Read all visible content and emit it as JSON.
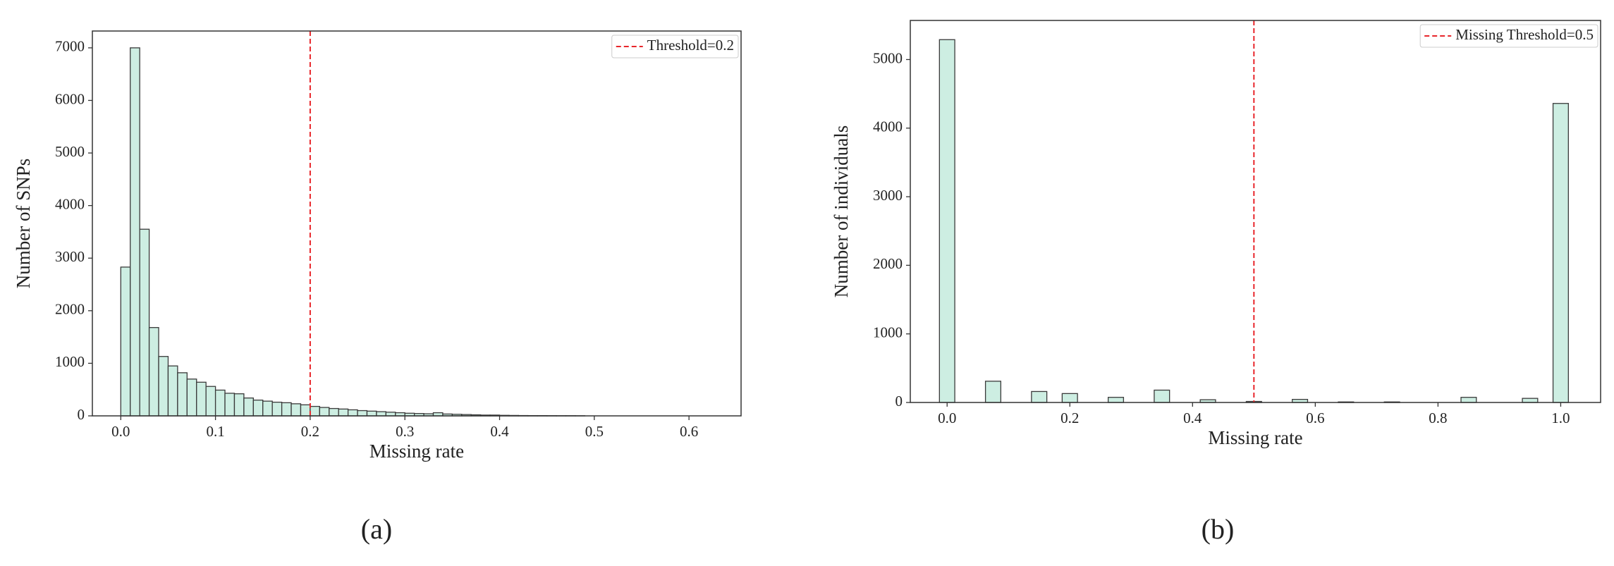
{
  "chart_data": [
    {
      "type": "histogram",
      "caption": "(a)",
      "xlabel": "Missing rate",
      "ylabel": "Number of SNPs",
      "bins": [
        0,
        0.01,
        0.02,
        0.03,
        0.04,
        0.05,
        0.06,
        0.07,
        0.08,
        0.09,
        0.1,
        0.11,
        0.12,
        0.13,
        0.14,
        0.15,
        0.16,
        0.17,
        0.18,
        0.19,
        0.2,
        0.21,
        0.22,
        0.23,
        0.24,
        0.25,
        0.26,
        0.27,
        0.28,
        0.29,
        0.3,
        0.31,
        0.32,
        0.33,
        0.34,
        0.35,
        0.36,
        0.37,
        0.38,
        0.39,
        0.4,
        0.41,
        0.42,
        0.43,
        0.44,
        0.45,
        0.46,
        0.47,
        0.48,
        0.49
      ],
      "values": [
        2830,
        7000,
        3550,
        1680,
        1130,
        950,
        820,
        700,
        640,
        560,
        490,
        430,
        420,
        340,
        300,
        280,
        260,
        250,
        230,
        210,
        180,
        160,
        140,
        130,
        115,
        100,
        90,
        80,
        70,
        60,
        50,
        45,
        40,
        60,
        35,
        30,
        25,
        20,
        15,
        15,
        10,
        8,
        6,
        5,
        5,
        4,
        3,
        3,
        2
      ],
      "color": "#cdeee2",
      "edgecolor": "#3a3a3a",
      "threshold": {
        "value": 0.2,
        "label": "Threshold=0.2",
        "color": "#e8262b"
      },
      "legend": "upper right",
      "xlim": [
        -0.03,
        0.655
      ],
      "ylim": [
        0,
        7320
      ],
      "xticks": [
        {
          "value": 0,
          "label": "0.0"
        },
        0.1,
        0.2,
        0.3,
        0.4,
        0.5,
        0.6
      ],
      "yticks": [
        0,
        1000,
        2000,
        3000,
        4000,
        5000,
        6000,
        7000
      ]
    },
    {
      "type": "histogram",
      "caption": "(b)",
      "xlabel": "Missing rate",
      "ylabel": "Number of individuals",
      "bins": [
        -0.0125,
        0.0125,
        0.0375,
        0.0625,
        0.0875,
        0.1125,
        0.1375,
        0.1625,
        0.1875,
        0.2125,
        0.2375,
        0.2625,
        0.2875,
        0.3125,
        0.3375,
        0.3625,
        0.3875,
        0.4125,
        0.4375,
        0.4625,
        0.4875,
        0.5125,
        0.5375,
        0.5625,
        0.5875,
        0.6125,
        0.6375,
        0.6625,
        0.6875,
        0.7125,
        0.7375,
        0.7625,
        0.7875,
        0.8125,
        0.8375,
        0.8625,
        0.8875,
        0.9125,
        0.9375,
        0.9625,
        0.9875,
        1.0125
      ],
      "values": [
        5290,
        0,
        0,
        310,
        0,
        0,
        160,
        0,
        130,
        0,
        0,
        75,
        0,
        0,
        180,
        0,
        0,
        40,
        0,
        0,
        15,
        0,
        0,
        45,
        0,
        0,
        8,
        0,
        0,
        8,
        0,
        0,
        0,
        0,
        75,
        0,
        0,
        0,
        60,
        0,
        4360
      ],
      "color": "#cdeee2",
      "edgecolor": "#3a3a3a",
      "threshold": {
        "value": 0.5,
        "label": "Missing Threshold=0.5",
        "color": "#e8262b"
      },
      "legend": "upper right",
      "xlim": [
        -0.06,
        1.065
      ],
      "ylim": [
        0,
        5570
      ],
      "xticks": [
        {
          "value": 0,
          "label": "0.0"
        },
        0.2,
        0.4,
        0.6,
        0.8,
        {
          "value": 1,
          "label": "1.0"
        }
      ],
      "yticks": [
        0,
        1000,
        2000,
        3000,
        4000,
        5000
      ]
    }
  ]
}
